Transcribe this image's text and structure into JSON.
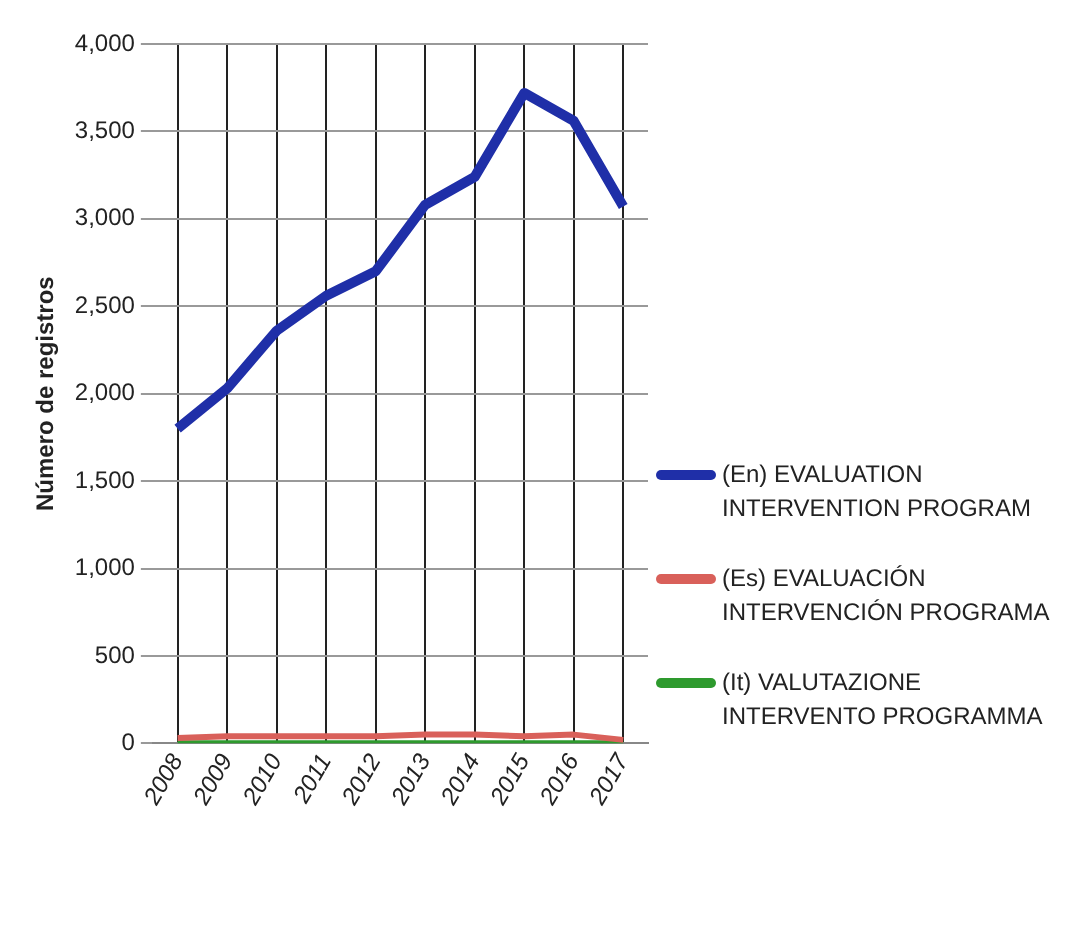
{
  "chart_data": {
    "type": "line",
    "ylabel": "Número de registros",
    "categories": [
      "2008",
      "2009",
      "2010",
      "2011",
      "2012",
      "2013",
      "2014",
      "2015",
      "2016",
      "2017"
    ],
    "series": [
      {
        "name": "(En) EVALUATION INTERVENTION PROGRAM",
        "color": "#1f2fa8",
        "values": [
          1800,
          2030,
          2360,
          2560,
          2700,
          3080,
          3240,
          3720,
          3560,
          3070
        ]
      },
      {
        "name": "(Es) EVALUACIÓN INTERVENCIÓN PROGRAMA",
        "color": "#d9605a",
        "values": [
          30,
          40,
          40,
          40,
          40,
          50,
          50,
          40,
          50,
          20
        ]
      },
      {
        "name": "(It) VALUTAZIONE INTERVENTO PROGRAMMA",
        "color": "#2e9a2e",
        "values": [
          0,
          0,
          0,
          0,
          0,
          0,
          0,
          0,
          0,
          0
        ]
      }
    ],
    "ylim": [
      0,
      4000
    ],
    "yticks": [
      {
        "value": 0,
        "label": "0"
      },
      {
        "value": 500,
        "label": "500"
      },
      {
        "value": 1000,
        "label": "1,000"
      },
      {
        "value": 1500,
        "label": "1,500"
      },
      {
        "value": 2000,
        "label": "2,000"
      },
      {
        "value": 2500,
        "label": "2,500"
      },
      {
        "value": 3000,
        "label": "3,000"
      },
      {
        "value": 3500,
        "label": "3,500"
      },
      {
        "value": 4000,
        "label": "4,000"
      }
    ],
    "grid": true,
    "legend": "right",
    "marker": "none",
    "line_style": "solid"
  }
}
